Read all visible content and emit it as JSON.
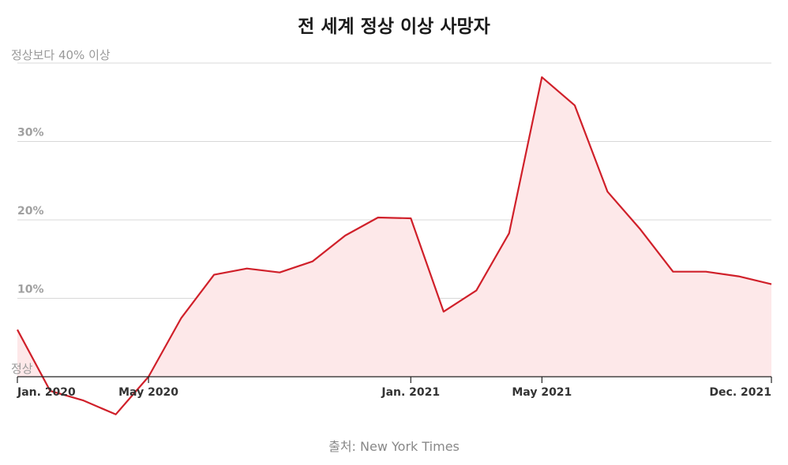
{
  "chart_data": {
    "type": "area",
    "title": "전 세계 정상 이상 사망자",
    "source": "출처: New York Times",
    "y_unit": "%",
    "ylim": [
      0,
      40
    ],
    "y_ticks": [
      {
        "value": 0,
        "label": "정상"
      },
      {
        "value": 10,
        "label": "10%"
      },
      {
        "value": 20,
        "label": "20%"
      },
      {
        "value": 30,
        "label": "30%"
      },
      {
        "value": 40,
        "label": "정상보다 40% 이상"
      }
    ],
    "x_ticks": [
      {
        "date": "2020-01",
        "label": "Jan. 2020"
      },
      {
        "date": "2020-05",
        "label": "May 2020"
      },
      {
        "date": "2021-01",
        "label": "Jan. 2021"
      },
      {
        "date": "2021-05",
        "label": "May 2021"
      },
      {
        "date": "2021-12",
        "label": "Dec. 2021"
      }
    ],
    "xlim": [
      "2020-01",
      "2021-12"
    ],
    "series": [
      {
        "color": "#d0202a",
        "fill": "#fde8e9",
        "points": [
          {
            "date": "2020-01",
            "y": 6.0
          },
          {
            "date": "2020-02",
            "y": -1.8
          },
          {
            "date": "2020-03",
            "y": -3.0
          },
          {
            "date": "2020-04",
            "y": -4.8
          },
          {
            "date": "2020-05",
            "y": 0.0
          },
          {
            "date": "2020-06",
            "y": 7.5
          },
          {
            "date": "2020-07",
            "y": 13.0
          },
          {
            "date": "2020-08",
            "y": 13.8
          },
          {
            "date": "2020-09",
            "y": 13.3
          },
          {
            "date": "2020-10",
            "y": 14.7
          },
          {
            "date": "2020-11",
            "y": 18.0
          },
          {
            "date": "2020-12",
            "y": 20.3
          },
          {
            "date": "2021-01",
            "y": 20.2
          },
          {
            "date": "2021-02",
            "y": 8.3
          },
          {
            "date": "2021-03",
            "y": 11.0
          },
          {
            "date": "2021-04",
            "y": 18.3
          },
          {
            "date": "2021-05",
            "y": 38.2
          },
          {
            "date": "2021-06",
            "y": 34.6
          },
          {
            "date": "2021-07",
            "y": 23.6
          },
          {
            "date": "2021-08",
            "y": 18.8
          },
          {
            "date": "2021-09",
            "y": 13.4
          },
          {
            "date": "2021-10",
            "y": 13.4
          },
          {
            "date": "2021-11",
            "y": 12.8
          },
          {
            "date": "2021-12",
            "y": 11.8
          }
        ]
      }
    ]
  }
}
